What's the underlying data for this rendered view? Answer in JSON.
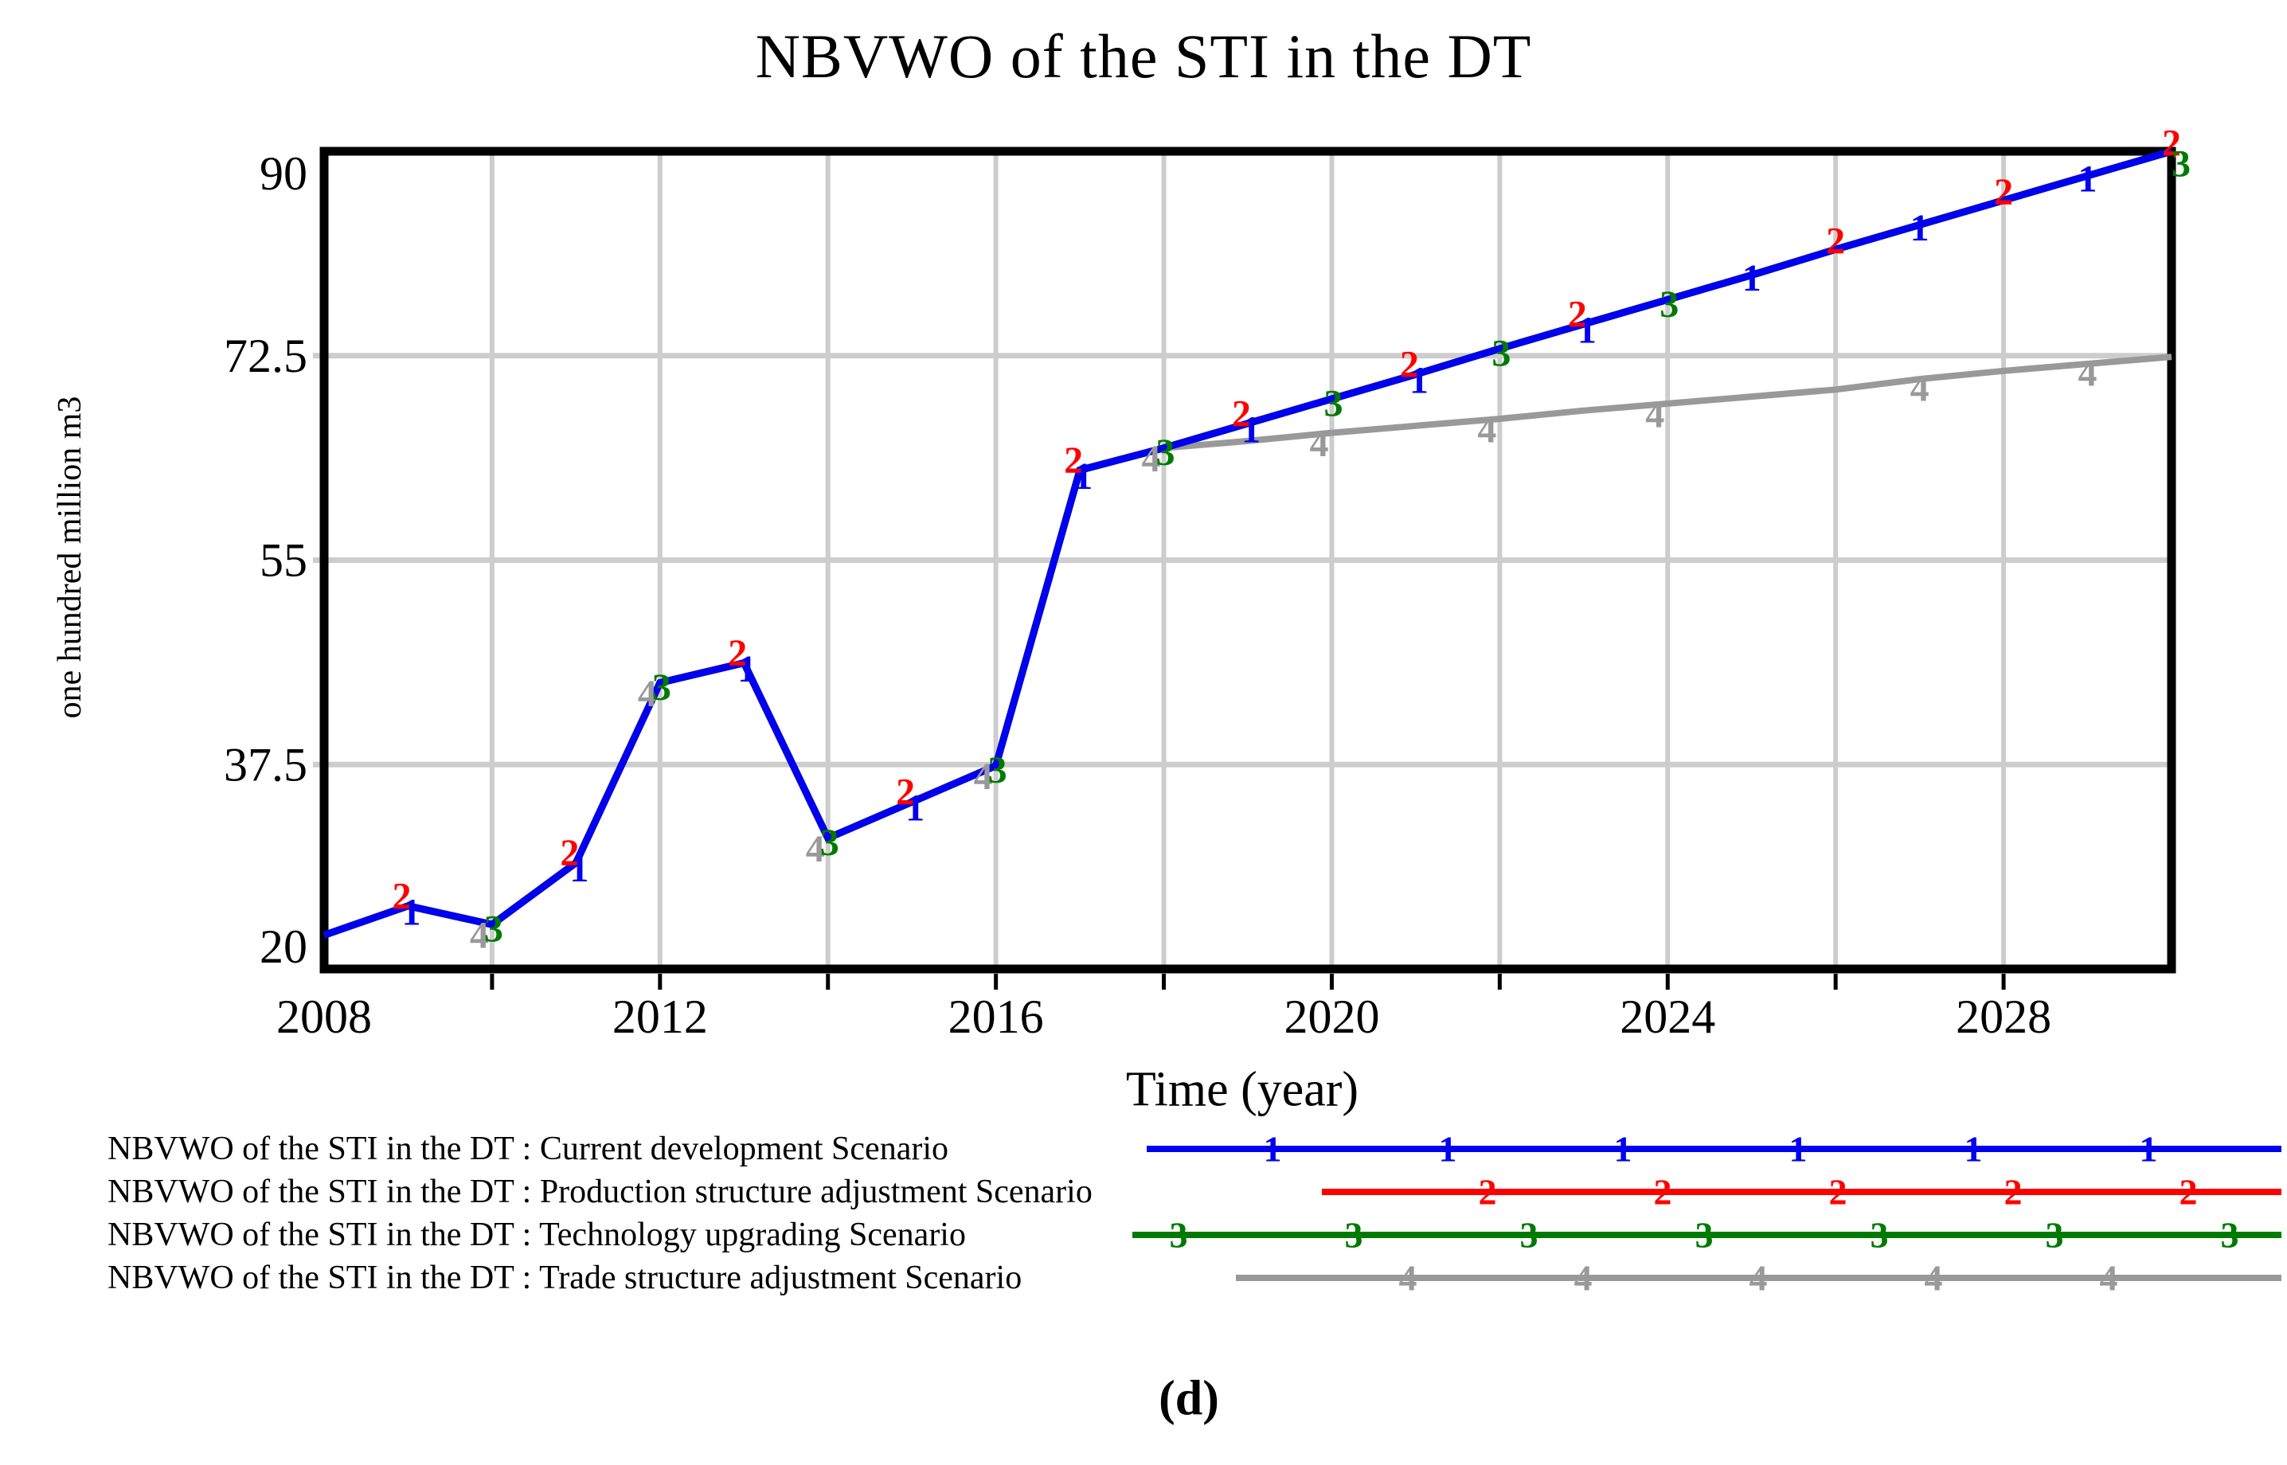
{
  "figure": {
    "caption": "(d)"
  },
  "chart_data": {
    "type": "line",
    "title": "NBVWO of the STI in the DT",
    "xlabel": "Time (year)",
    "ylabel": "one hundred million m3",
    "xlim": [
      2008,
      2030
    ],
    "ylim": [
      20,
      90
    ],
    "y_ticks": [
      20,
      37.5,
      55,
      72.5,
      90
    ],
    "y_tick_labels": [
      "20",
      "37.5",
      "55",
      "72.5",
      "90"
    ],
    "x_tick_labels": [
      "2008",
      "2012",
      "2016",
      "2020",
      "2024",
      "2028"
    ],
    "x_tick_values": [
      2008,
      2012,
      2016,
      2020,
      2024,
      2028
    ],
    "grid": true,
    "grid_x_every_years": 2,
    "legend_position": "bottom",
    "x": [
      2008,
      2009,
      2010,
      2011,
      2012,
      2013,
      2014,
      2015,
      2016,
      2017,
      2018,
      2019,
      2020,
      2021,
      2022,
      2023,
      2024,
      2025,
      2026,
      2027,
      2028,
      2029,
      2030
    ],
    "series": [
      {
        "name": "NBVWO of the STI in the DT : Current development Scenario",
        "marker": "1",
        "color": "#0000ee",
        "values": [
          22.9,
          25.4,
          23.8,
          29.1,
          44.5,
          46.2,
          31.2,
          34.3,
          37.4,
          62.7,
          64.6,
          66.7,
          68.8,
          70.9,
          73.1,
          75.2,
          77.3,
          79.4,
          81.6,
          83.7,
          85.8,
          87.9,
          90.0
        ],
        "marker_years": [
          2009,
          2011,
          2013,
          2015,
          2017,
          2019,
          2021,
          2023,
          2025,
          2027,
          2029
        ],
        "legend_marker_count": 6
      },
      {
        "name": "NBVWO of the STI in the DT : Production structure adjustment Scenario",
        "marker": "2",
        "color": "#ff0000",
        "values": [
          22.9,
          25.4,
          23.8,
          29.1,
          44.5,
          46.2,
          31.2,
          34.3,
          37.4,
          62.7,
          64.6,
          66.7,
          68.8,
          70.9,
          73.1,
          75.2,
          77.3,
          79.4,
          81.6,
          83.7,
          85.8,
          87.9,
          90.0
        ],
        "marker_years": [
          2009,
          2011,
          2013,
          2015,
          2017,
          2019,
          2021,
          2023,
          2026,
          2028,
          2030
        ],
        "legend_marker_count": 5
      },
      {
        "name": "NBVWO of the STI in the DT : Technology upgrading Scenario",
        "marker": "3",
        "color": "#007a00",
        "values": [
          22.9,
          25.4,
          23.8,
          29.1,
          44.5,
          46.2,
          31.2,
          34.3,
          37.4,
          62.7,
          64.6,
          66.7,
          68.8,
          70.9,
          73.1,
          75.2,
          77.3,
          79.4,
          81.6,
          83.7,
          85.8,
          87.9,
          90.0
        ],
        "marker_years": [
          2010,
          2012,
          2014,
          2016,
          2018,
          2020,
          2022,
          2024,
          2030
        ],
        "legend_marker_count": 7
      },
      {
        "name": "NBVWO of the STI in the DT : Trade structure adjustment Scenario",
        "marker": "4",
        "color": "#999999",
        "values": [
          22.9,
          25.4,
          23.8,
          29.1,
          44.5,
          46.2,
          31.2,
          34.3,
          37.4,
          62.7,
          64.6,
          65.2,
          65.9,
          66.5,
          67.1,
          67.8,
          68.4,
          69.0,
          69.6,
          70.5,
          71.2,
          71.8,
          72.4
        ],
        "marker_years": [
          2010,
          2012,
          2014,
          2016,
          2018,
          2020,
          2022,
          2024,
          2027,
          2029
        ],
        "legend_marker_count": 5
      }
    ]
  }
}
